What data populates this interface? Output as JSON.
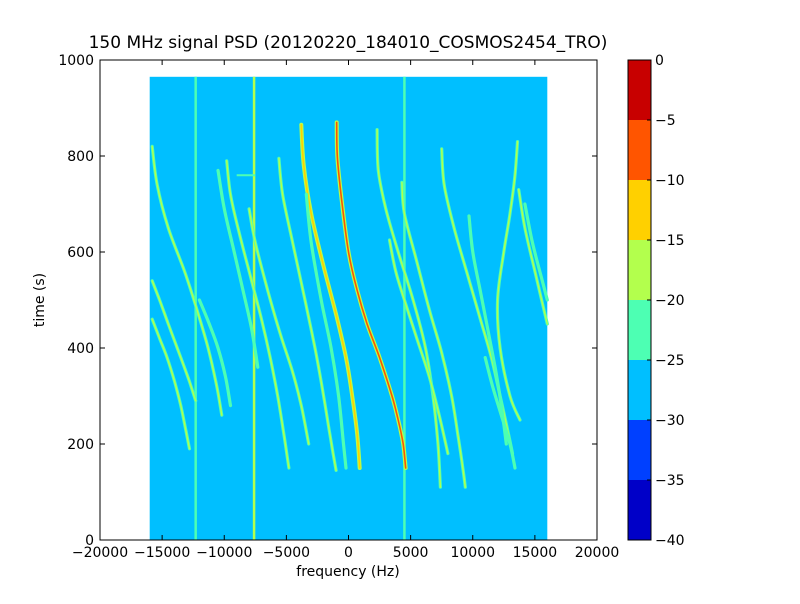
{
  "chart_data": {
    "type": "heatmap",
    "title": "150 MHz signal PSD (20120220_184010_COSMOS2454_TRO)",
    "xlabel": "frequency (Hz)",
    "ylabel": "time (s)",
    "xlim": [
      -20000,
      20000
    ],
    "ylim": [
      0,
      1000
    ],
    "xticks": [
      -20000,
      -15000,
      -10000,
      -5000,
      0,
      5000,
      10000,
      15000,
      20000
    ],
    "xtick_labels": [
      "−20000",
      "−15000",
      "−10000",
      "−5000",
      "0",
      "5000",
      "10000",
      "15000",
      "20000"
    ],
    "yticks": [
      0,
      200,
      400,
      600,
      800,
      1000
    ],
    "ytick_labels": [
      "0",
      "200",
      "400",
      "600",
      "800",
      "1000"
    ],
    "data_extent": {
      "x": [
        -16000,
        16000
      ],
      "y": [
        0,
        965
      ]
    },
    "background_level": -27.5,
    "colorbar": {
      "levels": [
        -40,
        -35,
        -30,
        -25,
        -20,
        -15,
        -10,
        -5,
        0
      ],
      "tick_labels": [
        "−40",
        "−35",
        "−30",
        "−25",
        "−20",
        "−15",
        "−10",
        "−5",
        "0"
      ],
      "colors": [
        "#0000c8",
        "#0040ff",
        "#00bfff",
        "#4dffb3",
        "#b3ff4d",
        "#ffd000",
        "#ff5500",
        "#c80000"
      ]
    },
    "vertical_lines": [
      {
        "x": -12300,
        "y": [
          0,
          965
        ],
        "level": -22
      },
      {
        "x": -7600,
        "y": [
          0,
          965
        ],
        "level": -18
      },
      {
        "x": 4500,
        "y": [
          0,
          965
        ],
        "level": -22
      }
    ],
    "horizontal_artifacts": [
      {
        "x": [
          -9000,
          -7500
        ],
        "y": 760,
        "level": -22
      }
    ],
    "tracks": [
      {
        "id": "main",
        "level": -8,
        "points": [
          [
            -950,
            870
          ],
          [
            -900,
            800
          ],
          [
            -600,
            720
          ],
          [
            0,
            600
          ],
          [
            700,
            520
          ],
          [
            1500,
            450
          ],
          [
            2500,
            380
          ],
          [
            3500,
            300
          ],
          [
            4000,
            250
          ],
          [
            4400,
            200
          ],
          [
            4600,
            150
          ]
        ]
      },
      {
        "id": "t1",
        "level": -14,
        "points": [
          [
            -3800,
            865
          ],
          [
            -3600,
            780
          ],
          [
            -3000,
            680
          ],
          [
            -2000,
            570
          ],
          [
            -1000,
            470
          ],
          [
            -200,
            380
          ],
          [
            300,
            300
          ],
          [
            700,
            220
          ],
          [
            900,
            150
          ]
        ]
      },
      {
        "id": "t2",
        "level": -16,
        "points": [
          [
            -5600,
            795
          ],
          [
            -5300,
            720
          ],
          [
            -4500,
            620
          ],
          [
            -3500,
            500
          ],
          [
            -2700,
            400
          ],
          [
            -2000,
            300
          ],
          [
            -1500,
            220
          ],
          [
            -1000,
            145
          ]
        ]
      },
      {
        "id": "t3",
        "level": -16,
        "points": [
          [
            2300,
            855
          ],
          [
            2400,
            770
          ],
          [
            3000,
            690
          ],
          [
            4000,
            600
          ],
          [
            5200,
            500
          ],
          [
            6200,
            400
          ],
          [
            6800,
            300
          ],
          [
            7200,
            200
          ],
          [
            7400,
            110
          ]
        ]
      },
      {
        "id": "t4",
        "level": -16,
        "points": [
          [
            4300,
            745
          ],
          [
            4500,
            680
          ],
          [
            5500,
            580
          ],
          [
            6500,
            480
          ],
          [
            7500,
            390
          ],
          [
            8300,
            300
          ],
          [
            8800,
            220
          ],
          [
            9200,
            150
          ],
          [
            9400,
            110
          ]
        ]
      },
      {
        "id": "t5",
        "level": -20,
        "points": [
          [
            7500,
            815
          ],
          [
            7700,
            740
          ],
          [
            8500,
            650
          ],
          [
            9500,
            560
          ],
          [
            10500,
            470
          ],
          [
            11500,
            380
          ],
          [
            12200,
            300
          ],
          [
            12800,
            230
          ],
          [
            13200,
            180
          ]
        ]
      },
      {
        "id": "t6",
        "level": -20,
        "points": [
          [
            3300,
            625
          ],
          [
            3800,
            560
          ],
          [
            4500,
            500
          ],
          [
            5500,
            420
          ],
          [
            6500,
            340
          ],
          [
            7300,
            260
          ],
          [
            8000,
            180
          ]
        ]
      },
      {
        "id": "t7",
        "level": -20,
        "points": [
          [
            -8000,
            690
          ],
          [
            -7500,
            620
          ],
          [
            -6500,
            520
          ],
          [
            -5500,
            430
          ],
          [
            -4500,
            350
          ],
          [
            -3800,
            280
          ],
          [
            -3200,
            200
          ]
        ]
      },
      {
        "id": "t8",
        "level": -20,
        "points": [
          [
            -9800,
            790
          ],
          [
            -9500,
            720
          ],
          [
            -8800,
            640
          ],
          [
            -7800,
            540
          ],
          [
            -7000,
            460
          ],
          [
            -6300,
            380
          ],
          [
            -5700,
            300
          ],
          [
            -5200,
            220
          ],
          [
            -4800,
            150
          ]
        ]
      },
      {
        "id": "t9",
        "level": -20,
        "points": [
          [
            -15800,
            820
          ],
          [
            -15400,
            740
          ],
          [
            -14500,
            650
          ],
          [
            -13200,
            560
          ],
          [
            -12200,
            480
          ],
          [
            -11300,
            400
          ],
          [
            -10600,
            320
          ],
          [
            -10200,
            260
          ]
        ]
      },
      {
        "id": "t10",
        "level": -20,
        "points": [
          [
            -15800,
            540
          ],
          [
            -15200,
            500
          ],
          [
            -14500,
            450
          ],
          [
            -13500,
            380
          ],
          [
            -12800,
            330
          ],
          [
            -12300,
            290
          ]
        ]
      },
      {
        "id": "t11",
        "level": -20,
        "points": [
          [
            -15800,
            460
          ],
          [
            -15200,
            420
          ],
          [
            -14600,
            380
          ],
          [
            -14000,
            330
          ],
          [
            -13500,
            280
          ],
          [
            -13100,
            230
          ],
          [
            -12800,
            190
          ]
        ]
      },
      {
        "id": "t12",
        "level": -20,
        "points": [
          [
            13700,
            730
          ],
          [
            14200,
            650
          ],
          [
            15000,
            560
          ],
          [
            16000,
            450
          ]
        ]
      },
      {
        "id": "t13",
        "level": -20,
        "points": [
          [
            13600,
            830
          ],
          [
            13400,
            760
          ],
          [
            13000,
            680
          ],
          [
            12500,
            600
          ],
          [
            12000,
            500
          ],
          [
            12200,
            400
          ],
          [
            13000,
            300
          ],
          [
            13800,
            250
          ]
        ]
      },
      {
        "id": "t14",
        "level": -22,
        "points": [
          [
            -3400,
            720
          ],
          [
            -3000,
            620
          ],
          [
            -2200,
            500
          ],
          [
            -1400,
            400
          ],
          [
            -800,
            300
          ],
          [
            -400,
            200
          ],
          [
            -200,
            150
          ]
        ]
      },
      {
        "id": "t15",
        "level": -22,
        "points": [
          [
            -12000,
            500
          ],
          [
            -11200,
            450
          ],
          [
            -10500,
            400
          ],
          [
            -9900,
            340
          ],
          [
            -9500,
            280
          ]
        ]
      },
      {
        "id": "t16",
        "level": -22,
        "points": [
          [
            -10500,
            770
          ],
          [
            -10000,
            690
          ],
          [
            -9200,
            600
          ],
          [
            -8400,
            510
          ],
          [
            -7800,
            440
          ],
          [
            -7300,
            360
          ]
        ]
      },
      {
        "id": "t17",
        "level": -22,
        "points": [
          [
            9700,
            675
          ],
          [
            10000,
            600
          ],
          [
            10600,
            520
          ],
          [
            11200,
            440
          ],
          [
            11800,
            360
          ],
          [
            12300,
            280
          ],
          [
            12700,
            200
          ]
        ]
      },
      {
        "id": "t18",
        "level": -22,
        "points": [
          [
            14200,
            700
          ],
          [
            14800,
            620
          ],
          [
            15600,
            540
          ],
          [
            16000,
            500
          ]
        ]
      },
      {
        "id": "t19",
        "level": -22,
        "points": [
          [
            11000,
            380
          ],
          [
            11600,
            320
          ],
          [
            12300,
            260
          ],
          [
            13000,
            200
          ],
          [
            13400,
            150
          ]
        ]
      }
    ]
  }
}
